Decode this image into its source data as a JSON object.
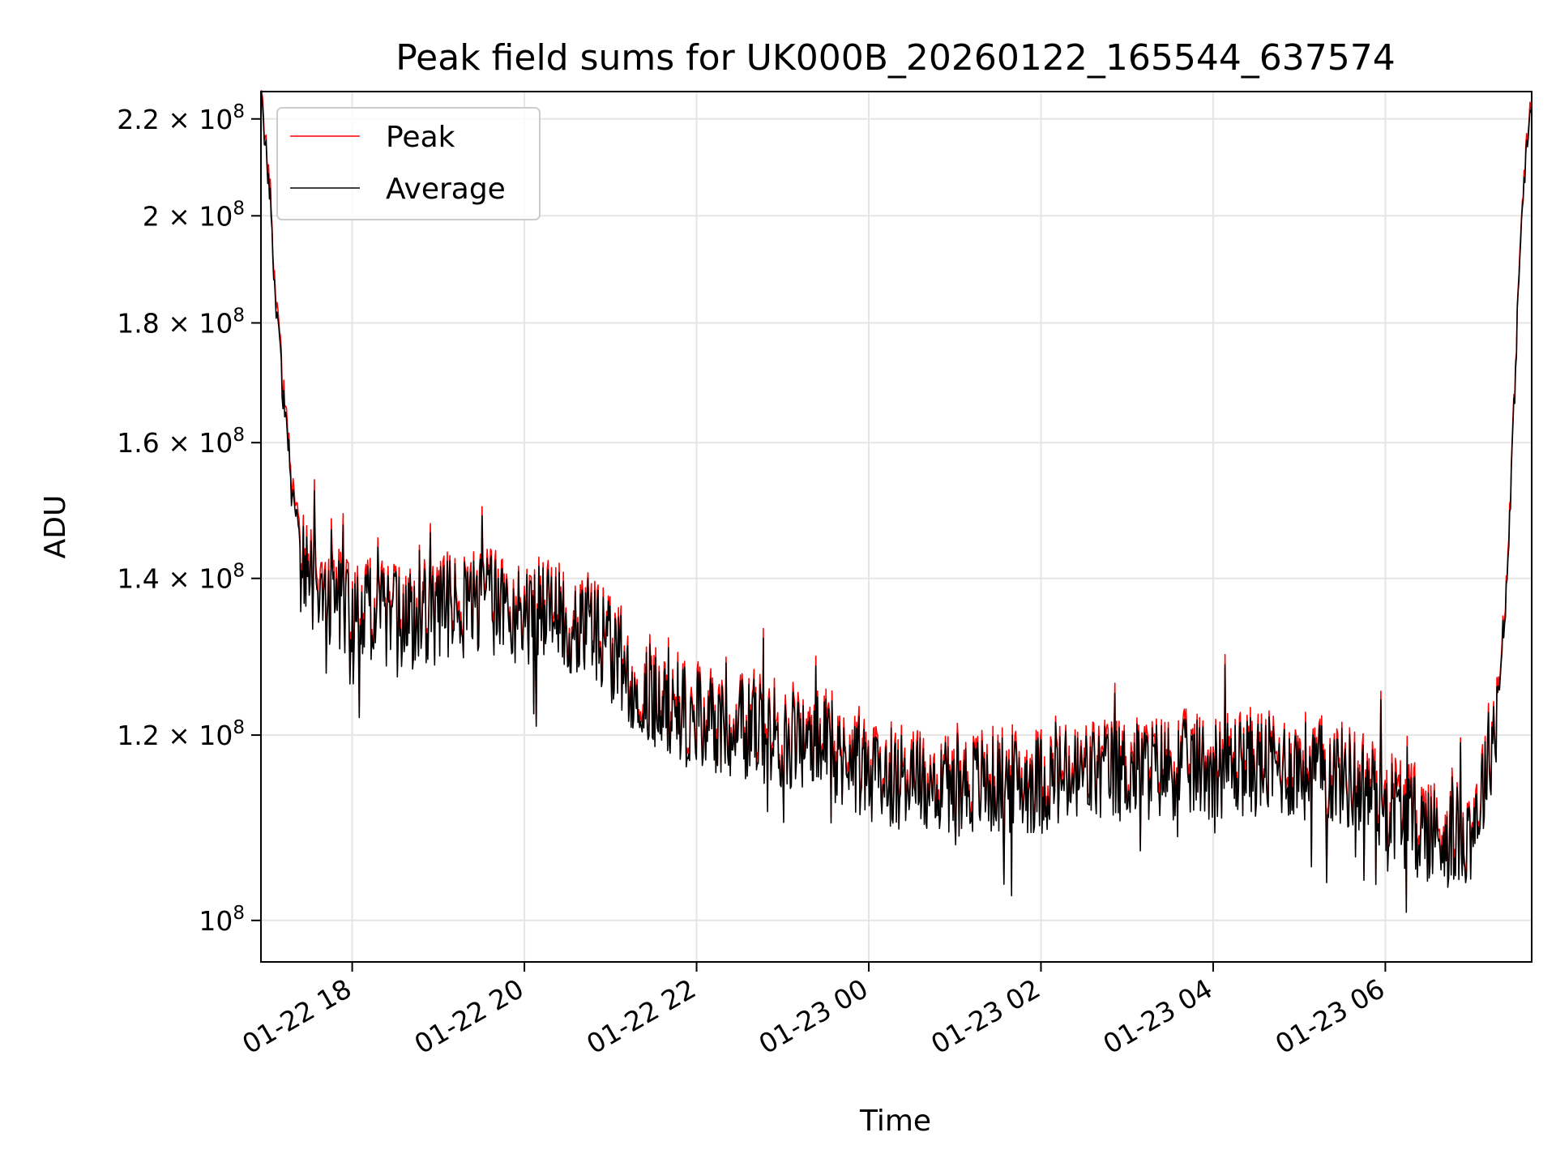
{
  "chart_data": {
    "type": "line",
    "title": "Peak field sums for UK000B_20260122_165544_637574",
    "xlabel": "Time",
    "ylabel": "ADU",
    "y_scale": "log",
    "x_unit": "hours since 01-22 00:00",
    "xlim": [
      16.94,
      31.7
    ],
    "ylim": [
      96000000,
      226000000
    ],
    "grid": true,
    "legend_position": "upper-left",
    "x_ticks": [
      {
        "value": 18,
        "label": "01-22 18"
      },
      {
        "value": 20,
        "label": "01-22 20"
      },
      {
        "value": 22,
        "label": "01-22 22"
      },
      {
        "value": 24,
        "label": "01-23 00"
      },
      {
        "value": 26,
        "label": "01-23 02"
      },
      {
        "value": 28,
        "label": "01-23 04"
      },
      {
        "value": 30,
        "label": "01-23 06"
      }
    ],
    "y_ticks": [
      {
        "value": 100000000,
        "mantissa": "",
        "exponent": "8",
        "base": "10"
      },
      {
        "value": 120000000,
        "mantissa": "1.2",
        "exponent": "8",
        "base": "10"
      },
      {
        "value": 140000000,
        "mantissa": "1.4",
        "exponent": "8",
        "base": "10"
      },
      {
        "value": 160000000,
        "mantissa": "1.6",
        "exponent": "8",
        "base": "10"
      },
      {
        "value": 180000000,
        "mantissa": "1.8",
        "exponent": "8",
        "base": "10"
      },
      {
        "value": 200000000,
        "mantissa": "2",
        "exponent": "8",
        "base": "10"
      },
      {
        "value": 220000000,
        "mantissa": "2.2",
        "exponent": "8",
        "base": "10"
      }
    ],
    "series": [
      {
        "name": "Peak",
        "color": "#ff0000",
        "x": [
          16.94,
          17.0,
          17.1,
          17.15,
          17.2,
          17.3,
          17.4,
          17.5,
          17.6,
          17.8,
          18.0,
          18.3,
          18.6,
          19.0,
          19.3,
          19.5,
          19.8,
          20.0,
          20.3,
          20.5,
          20.8,
          21.0,
          21.3,
          21.6,
          22.0,
          22.5,
          23.0,
          23.5,
          24.0,
          24.5,
          25.0,
          25.5,
          26.0,
          26.5,
          27.0,
          27.5,
          28.0,
          28.5,
          29.0,
          29.5,
          30.0,
          30.2,
          30.4,
          30.6,
          30.8,
          31.0,
          31.1,
          31.2,
          31.3,
          31.35,
          31.4,
          31.45,
          31.5,
          31.55,
          31.6,
          31.65,
          31.7
        ],
        "values": [
          225000000,
          215000000,
          188000000,
          178000000,
          168000000,
          155000000,
          145000000,
          141000000,
          139000000,
          138000000,
          137000000,
          135500000,
          135000000,
          136000000,
          137000000,
          137500000,
          136500000,
          136000000,
          135500000,
          135000000,
          134500000,
          131000000,
          127000000,
          124500000,
          122500000,
          121500000,
          120500000,
          119500000,
          116500000,
          115500000,
          115000000,
          115000000,
          115200000,
          116000000,
          116500000,
          116800000,
          117000000,
          117200000,
          116800000,
          116000000,
          113500000,
          112000000,
          110500000,
          109500000,
          109000000,
          110000000,
          113000000,
          118000000,
          124000000,
          130000000,
          138000000,
          150000000,
          168000000,
          188000000,
          205000000,
          215000000,
          225000000
        ]
      },
      {
        "name": "Average",
        "color": "#000000",
        "x": [
          16.94,
          17.0,
          17.1,
          17.15,
          17.2,
          17.3,
          17.4,
          17.5,
          17.6,
          17.8,
          18.0,
          18.3,
          18.6,
          19.0,
          19.3,
          19.5,
          19.8,
          20.0,
          20.3,
          20.5,
          20.8,
          21.0,
          21.3,
          21.6,
          22.0,
          22.5,
          23.0,
          23.5,
          24.0,
          24.5,
          25.0,
          25.5,
          26.0,
          26.5,
          27.0,
          27.5,
          28.0,
          28.5,
          29.0,
          29.5,
          30.0,
          30.2,
          30.4,
          30.6,
          30.8,
          31.0,
          31.1,
          31.2,
          31.3,
          31.35,
          31.4,
          31.45,
          31.5,
          31.55,
          31.6,
          31.65,
          31.7
        ],
        "values": [
          224000000,
          214000000,
          187000000,
          177000000,
          167000000,
          154000000,
          144000000,
          140000000,
          138000000,
          137000000,
          136000000,
          134800000,
          134300000,
          135300000,
          136300000,
          136800000,
          135800000,
          135300000,
          134800000,
          134300000,
          133800000,
          130300000,
          126300000,
          123800000,
          121800000,
          120800000,
          119800000,
          118800000,
          115800000,
          114800000,
          114300000,
          114300000,
          114500000,
          115300000,
          115800000,
          116100000,
          116300000,
          116500000,
          116100000,
          115300000,
          112500000,
          110800000,
          109500000,
          108800000,
          108500000,
          109400000,
          112400000,
          117400000,
          123400000,
          129400000,
          137400000,
          149400000,
          167400000,
          187400000,
          204400000,
          214400000,
          224000000
        ]
      }
    ]
  }
}
